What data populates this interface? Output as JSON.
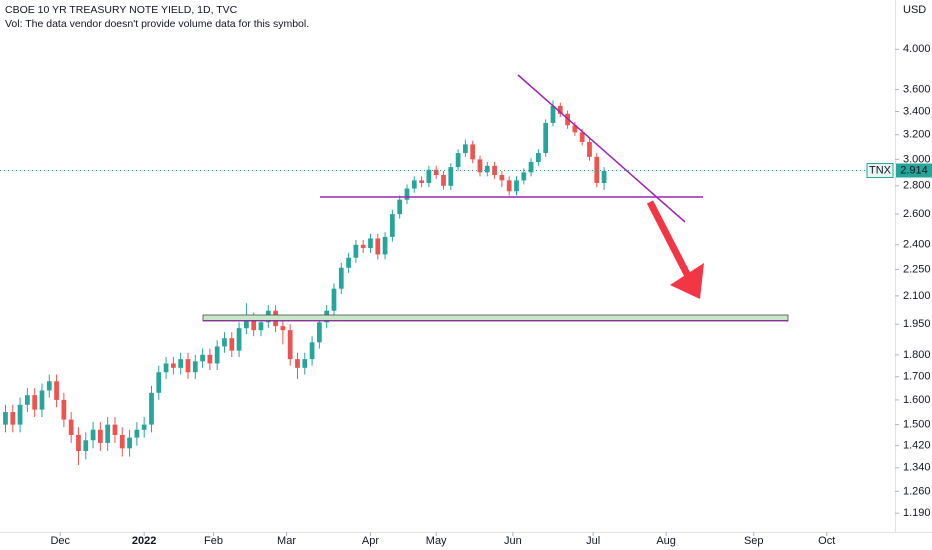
{
  "header": {
    "title": "CBOE 10 YR TREASURY NOTE YIELD, 1D, TVC",
    "note": "Vol: The data vendor doesn't provide volume data for this symbol."
  },
  "chart_data": {
    "type": "candlestick",
    "currency": "USD",
    "symbol": "TNX",
    "last_price": 2.914,
    "log_scale": true,
    "up_color": "#26a69a",
    "down_color": "#ef5350",
    "x": [
      1,
      3,
      5,
      7,
      9,
      11,
      13,
      15,
      17,
      19,
      21,
      23,
      25,
      27,
      29,
      31,
      33,
      35,
      37,
      39,
      41,
      43,
      45,
      47,
      49,
      51,
      53,
      55,
      57,
      59,
      61,
      63,
      65,
      67,
      69,
      71,
      73,
      75,
      77,
      79,
      81,
      83,
      85,
      87,
      89,
      91,
      93,
      95,
      97,
      99,
      101,
      103,
      105,
      107,
      109,
      111,
      113,
      115,
      117,
      119,
      121,
      123,
      125,
      127,
      129,
      131,
      133,
      135,
      137,
      139,
      141,
      143,
      145,
      147,
      149,
      151,
      153,
      155,
      157,
      159,
      161,
      163,
      165
    ],
    "open": [
      1.5,
      1.55,
      1.5,
      1.58,
      1.62,
      1.56,
      1.64,
      1.68,
      1.6,
      1.52,
      1.46,
      1.4,
      1.44,
      1.48,
      1.43,
      1.5,
      1.46,
      1.41,
      1.45,
      1.48,
      1.5,
      1.63,
      1.72,
      1.76,
      1.74,
      1.78,
      1.72,
      1.77,
      1.8,
      1.76,
      1.84,
      1.88,
      1.82,
      1.93,
      1.98,
      1.92,
      1.96,
      2.02,
      1.94,
      1.92,
      1.78,
      1.74,
      1.78,
      1.86,
      1.96,
      2.02,
      2.14,
      2.26,
      2.32,
      2.4,
      2.38,
      2.44,
      2.34,
      2.45,
      2.6,
      2.7,
      2.78,
      2.84,
      2.82,
      2.92,
      2.88,
      2.8,
      2.94,
      3.05,
      3.12,
      3.0,
      2.9,
      2.95,
      2.88,
      2.84,
      2.76,
      2.84,
      2.9,
      2.98,
      3.05,
      3.3,
      3.45,
      3.38,
      3.28,
      3.22,
      3.14,
      3.02,
      2.82
    ],
    "high": [
      1.58,
      1.58,
      1.61,
      1.65,
      1.65,
      1.67,
      1.71,
      1.71,
      1.63,
      1.55,
      1.49,
      1.47,
      1.51,
      1.51,
      1.53,
      1.53,
      1.49,
      1.48,
      1.51,
      1.53,
      1.66,
      1.75,
      1.79,
      1.79,
      1.81,
      1.81,
      1.8,
      1.83,
      1.83,
      1.87,
      1.91,
      1.91,
      1.96,
      2.06,
      2.01,
      1.99,
      2.05,
      2.05,
      1.97,
      1.95,
      1.81,
      1.81,
      1.89,
      1.99,
      2.05,
      2.17,
      2.29,
      2.35,
      2.43,
      2.43,
      2.47,
      2.47,
      2.48,
      2.63,
      2.73,
      2.81,
      2.87,
      2.87,
      2.95,
      2.95,
      2.91,
      2.97,
      3.08,
      3.16,
      3.15,
      3.03,
      2.98,
      2.98,
      2.91,
      2.87,
      2.87,
      2.93,
      3.01,
      3.08,
      3.33,
      3.5,
      3.48,
      3.41,
      3.31,
      3.25,
      3.17,
      3.05,
      2.94
    ],
    "low": [
      1.47,
      1.47,
      1.47,
      1.55,
      1.53,
      1.53,
      1.61,
      1.57,
      1.49,
      1.43,
      1.35,
      1.37,
      1.41,
      1.4,
      1.4,
      1.43,
      1.38,
      1.38,
      1.42,
      1.45,
      1.47,
      1.6,
      1.69,
      1.71,
      1.71,
      1.69,
      1.69,
      1.74,
      1.73,
      1.73,
      1.81,
      1.79,
      1.79,
      1.9,
      1.89,
      1.89,
      1.93,
      1.91,
      1.85,
      1.75,
      1.69,
      1.71,
      1.75,
      1.83,
      1.93,
      1.99,
      2.11,
      2.23,
      2.29,
      2.35,
      2.35,
      2.31,
      2.31,
      2.42,
      2.57,
      2.67,
      2.75,
      2.79,
      2.79,
      2.85,
      2.77,
      2.77,
      2.91,
      3.02,
      2.97,
      2.87,
      2.87,
      2.85,
      2.79,
      2.73,
      2.73,
      2.81,
      2.87,
      2.95,
      3.02,
      3.27,
      3.35,
      3.25,
      3.19,
      3.11,
      2.99,
      2.79,
      2.77
    ],
    "close": [
      1.55,
      1.5,
      1.58,
      1.62,
      1.56,
      1.64,
      1.68,
      1.6,
      1.52,
      1.46,
      1.4,
      1.44,
      1.48,
      1.43,
      1.5,
      1.46,
      1.41,
      1.45,
      1.48,
      1.5,
      1.63,
      1.72,
      1.76,
      1.74,
      1.78,
      1.72,
      1.77,
      1.8,
      1.76,
      1.84,
      1.88,
      1.82,
      1.93,
      1.98,
      1.92,
      1.96,
      2.02,
      1.94,
      1.92,
      1.78,
      1.74,
      1.78,
      1.86,
      1.96,
      2.02,
      2.14,
      2.26,
      2.32,
      2.4,
      2.38,
      2.44,
      2.34,
      2.45,
      2.6,
      2.7,
      2.78,
      2.84,
      2.82,
      2.92,
      2.88,
      2.8,
      2.94,
      3.05,
      3.12,
      3.0,
      2.9,
      2.95,
      2.88,
      2.84,
      2.76,
      2.84,
      2.9,
      2.98,
      3.05,
      3.3,
      3.45,
      3.38,
      3.28,
      3.22,
      3.14,
      3.02,
      2.82,
      2.91
    ],
    "xlim": [
      -0.5,
      244.7
    ],
    "xticks": [
      {
        "value": 16,
        "label": "Dec"
      },
      {
        "value": 39,
        "label": "2022"
      },
      {
        "value": 58,
        "label": "Feb"
      },
      {
        "value": 78,
        "label": "Mar"
      },
      {
        "value": 101,
        "label": "Apr"
      },
      {
        "value": 119,
        "label": "May"
      },
      {
        "value": 140,
        "label": "Jun"
      },
      {
        "value": 162,
        "label": "Jul"
      },
      {
        "value": 182,
        "label": "Aug"
      },
      {
        "value": 206,
        "label": "Sep"
      },
      {
        "value": 226,
        "label": "Oct"
      }
    ],
    "ylim": [
      1.133,
      4.55
    ],
    "yticks": [
      {
        "value": 4,
        "label": "4.000"
      },
      {
        "value": 3.6,
        "label": "3.600"
      },
      {
        "value": 3.4,
        "label": "3.400"
      },
      {
        "value": 3.2,
        "label": "3.200"
      },
      {
        "value": 3,
        "label": "3.000"
      },
      {
        "value": 2.8,
        "label": "2.800"
      },
      {
        "value": 2.6,
        "label": "2.600"
      },
      {
        "value": 2.4,
        "label": "2.400"
      },
      {
        "value": 2.25,
        "label": "2.250"
      },
      {
        "value": 2.1,
        "label": "2.100"
      },
      {
        "value": 1.95,
        "label": "1.950"
      },
      {
        "value": 1.8,
        "label": "1.800"
      },
      {
        "value": 1.7,
        "label": "1.700"
      },
      {
        "value": 1.6,
        "label": "1.600"
      },
      {
        "value": 1.5,
        "label": "1.500"
      },
      {
        "value": 1.42,
        "label": "1.420"
      },
      {
        "value": 1.34,
        "label": "1.340"
      },
      {
        "value": 1.26,
        "label": "1.260"
      },
      {
        "value": 1.19,
        "label": "1.190"
      }
    ]
  }
}
